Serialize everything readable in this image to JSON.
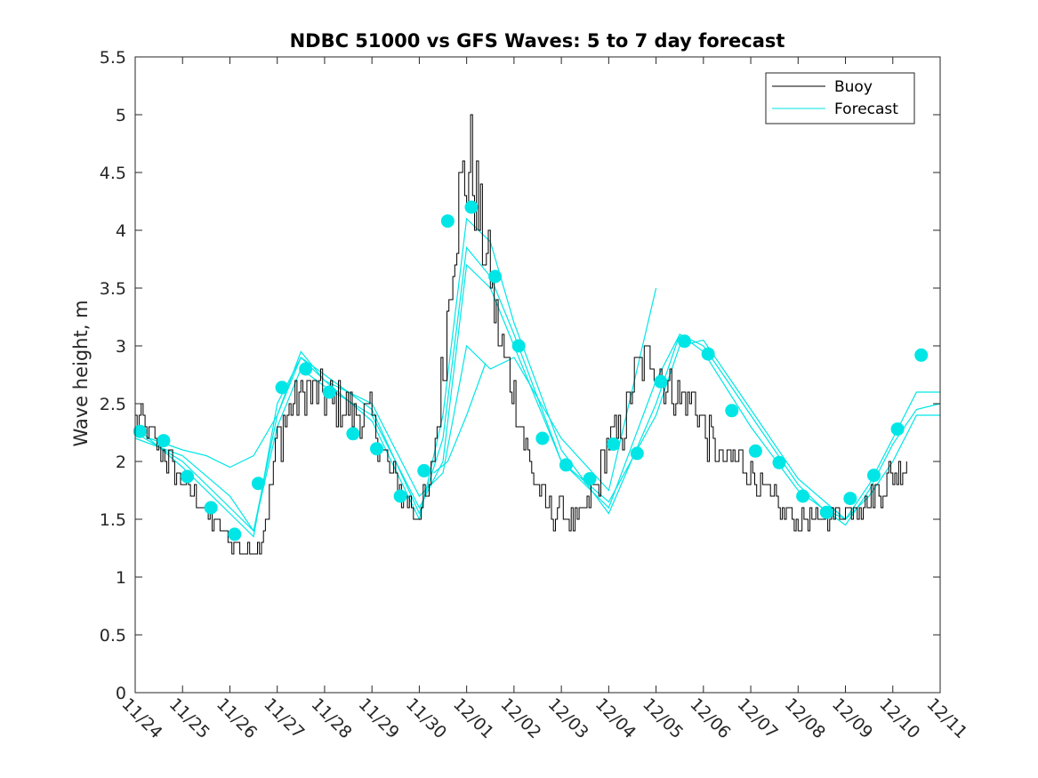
{
  "chart_data": {
    "type": "line",
    "title": "NDBC 51000 vs GFS Waves: 5 to 7 day forecast",
    "xlabel": "",
    "ylabel": "Wave height, m",
    "ylim": [
      0,
      5.5
    ],
    "yticks": [
      0,
      0.5,
      1,
      1.5,
      2,
      2.5,
      3,
      3.5,
      4,
      4.5,
      5,
      5.5
    ],
    "ytick_labels": [
      "0",
      "0.5",
      "1",
      "1.5",
      "2",
      "2.5",
      "3",
      "3.5",
      "4",
      "4.5",
      "5",
      "5.5"
    ],
    "xlim_days": [
      0,
      17
    ],
    "xtick_labels": [
      "11/24",
      "11/25",
      "11/26",
      "11/27",
      "11/28",
      "11/29",
      "11/30",
      "12/01",
      "12/02",
      "12/03",
      "12/04",
      "12/05",
      "12/06",
      "12/07",
      "12/08",
      "12/09",
      "12/10",
      "12/11"
    ],
    "legend": {
      "position": "top-right",
      "entries": [
        {
          "label": "Buoy",
          "color": "#000000"
        },
        {
          "label": "Forecast",
          "color": "#00e6e6"
        }
      ]
    },
    "series": [
      {
        "name": "Buoy",
        "color": "#000000",
        "x_days": [
          0,
          0.5,
          1.0,
          1.5,
          2.0,
          2.3,
          2.6,
          2.8,
          3.0,
          3.3,
          3.6,
          4.0,
          4.5,
          5.0,
          5.5,
          5.9,
          6.2,
          6.5,
          6.7,
          6.9,
          7.1,
          7.3,
          7.5,
          7.7,
          8.0,
          8.3,
          8.6,
          8.8,
          9.0,
          9.3,
          9.7,
          10.0,
          10.3,
          10.6,
          10.9,
          11.2,
          11.5,
          11.8,
          12.1,
          12.4,
          12.8,
          13.2,
          13.6,
          14.0,
          14.5,
          15.0,
          15.5,
          16.0,
          16.3
        ],
        "values": [
          2.4,
          2.1,
          1.85,
          1.55,
          1.3,
          1.22,
          1.25,
          1.6,
          2.2,
          2.5,
          2.6,
          2.55,
          2.45,
          2.35,
          1.8,
          1.55,
          1.7,
          2.8,
          3.9,
          4.4,
          4.6,
          4.0,
          3.6,
          3.0,
          2.6,
          2.0,
          1.65,
          1.55,
          1.6,
          1.45,
          1.75,
          2.15,
          2.3,
          2.8,
          2.9,
          2.7,
          2.55,
          2.5,
          2.2,
          2.0,
          2.0,
          1.8,
          1.6,
          1.5,
          1.5,
          1.6,
          1.65,
          1.9,
          2.0
        ],
        "noise_amplitude": [
          0.15,
          0.15,
          0.1,
          0.1,
          0.08,
          0.05,
          0.05,
          0.15,
          0.25,
          0.25,
          0.2,
          0.2,
          0.2,
          0.2,
          0.15,
          0.1,
          0.15,
          0.3,
          0.4,
          0.5,
          0.5,
          0.4,
          0.3,
          0.3,
          0.25,
          0.2,
          0.15,
          0.12,
          0.12,
          0.12,
          0.15,
          0.2,
          0.2,
          0.25,
          0.2,
          0.2,
          0.2,
          0.2,
          0.2,
          0.15,
          0.15,
          0.12,
          0.1,
          0.08,
          0.08,
          0.1,
          0.12,
          0.15,
          0.15
        ]
      },
      {
        "name": "Forecast run 1",
        "color": "#00e6e6",
        "x_days": [
          0,
          1,
          2,
          2.5,
          3,
          3.5,
          4,
          5,
          6,
          6.5,
          7,
          7.5,
          8,
          9,
          10,
          11,
          11.5,
          12,
          13,
          14,
          14.5,
          15,
          15.5,
          16,
          16.5,
          17
        ],
        "values": [
          2.3,
          1.95,
          1.55,
          1.35,
          2.5,
          2.9,
          2.75,
          2.45,
          1.55,
          2.2,
          3.85,
          3.6,
          3.1,
          2.0,
          1.6,
          2.7,
          3.1,
          3.0,
          2.4,
          1.8,
          1.6,
          1.5,
          1.8,
          2.2,
          2.6,
          2.6
        ]
      },
      {
        "name": "Forecast run 2",
        "color": "#00e6e6",
        "x_days": [
          0,
          1,
          2,
          2.5,
          3,
          3.5,
          4,
          5,
          6,
          6.5,
          7,
          7.5,
          8,
          9,
          10,
          11,
          11.5,
          12,
          13,
          14,
          15,
          15.5,
          16,
          16.5,
          17
        ],
        "values": [
          2.25,
          2.0,
          1.6,
          1.4,
          2.4,
          2.95,
          2.7,
          2.35,
          1.5,
          2.4,
          4.1,
          3.9,
          3.2,
          2.1,
          1.55,
          2.5,
          3.1,
          2.95,
          2.3,
          1.75,
          1.45,
          1.75,
          2.15,
          2.45,
          2.5
        ]
      },
      {
        "name": "Forecast run 3",
        "color": "#00e6e6",
        "x_days": [
          0,
          1,
          2,
          2.5,
          3,
          3.5,
          4,
          5,
          6,
          6.5,
          7,
          7.5,
          8,
          9,
          10,
          11,
          11.5,
          12,
          13,
          14,
          15,
          15.5,
          16,
          16.5,
          17
        ],
        "values": [
          2.2,
          2.05,
          1.7,
          1.4,
          2.3,
          2.8,
          2.65,
          2.4,
          1.6,
          2.0,
          3.7,
          3.5,
          3.0,
          2.0,
          1.65,
          2.4,
          3.0,
          3.05,
          2.45,
          1.85,
          1.5,
          1.7,
          2.0,
          2.4,
          2.4
        ]
      },
      {
        "name": "Forecast run 4",
        "color": "#00e6e6",
        "x_days": [
          0.3,
          1,
          1.5,
          2,
          2.5,
          3,
          3.5,
          4,
          5,
          6,
          6.5,
          7,
          7.5,
          8,
          9,
          10,
          11
        ],
        "values": [
          2.2,
          2.1,
          2.05,
          1.95,
          2.05,
          2.4,
          2.9,
          2.7,
          2.5,
          1.7,
          1.9,
          3.0,
          2.8,
          2.9,
          2.2,
          1.75,
          3.5
        ]
      },
      {
        "name": "Forecast run 5",
        "color": "#00e6e6",
        "x_days": [
          6.3,
          6.6,
          7.0,
          7.4
        ],
        "values": [
          1.9,
          2.0,
          2.4,
          2.85
        ]
      }
    ],
    "markers": {
      "name": "Forecast markers",
      "color": "#00e6e6",
      "x_days": [
        0.1,
        0.6,
        1.1,
        1.6,
        2.1,
        2.6,
        3.1,
        3.6,
        4.1,
        4.6,
        5.1,
        5.6,
        6.1,
        6.6,
        7.1,
        7.6,
        8.1,
        8.6,
        9.1,
        9.6,
        10.1,
        10.6,
        11.1,
        11.6,
        12.1,
        12.6,
        13.1,
        13.6,
        14.1,
        14.6,
        15.1,
        15.6,
        16.1,
        16.6
      ],
      "values": [
        2.26,
        2.18,
        1.87,
        1.6,
        1.37,
        1.81,
        2.64,
        2.8,
        2.6,
        2.24,
        2.11,
        1.7,
        1.92,
        4.08,
        4.2,
        3.6,
        3.0,
        2.2,
        1.97,
        1.85,
        2.15,
        2.07,
        2.69,
        3.04,
        2.93,
        2.44,
        2.09,
        1.99,
        1.7,
        1.56,
        1.68,
        1.88,
        2.28,
        2.92
      ]
    }
  }
}
